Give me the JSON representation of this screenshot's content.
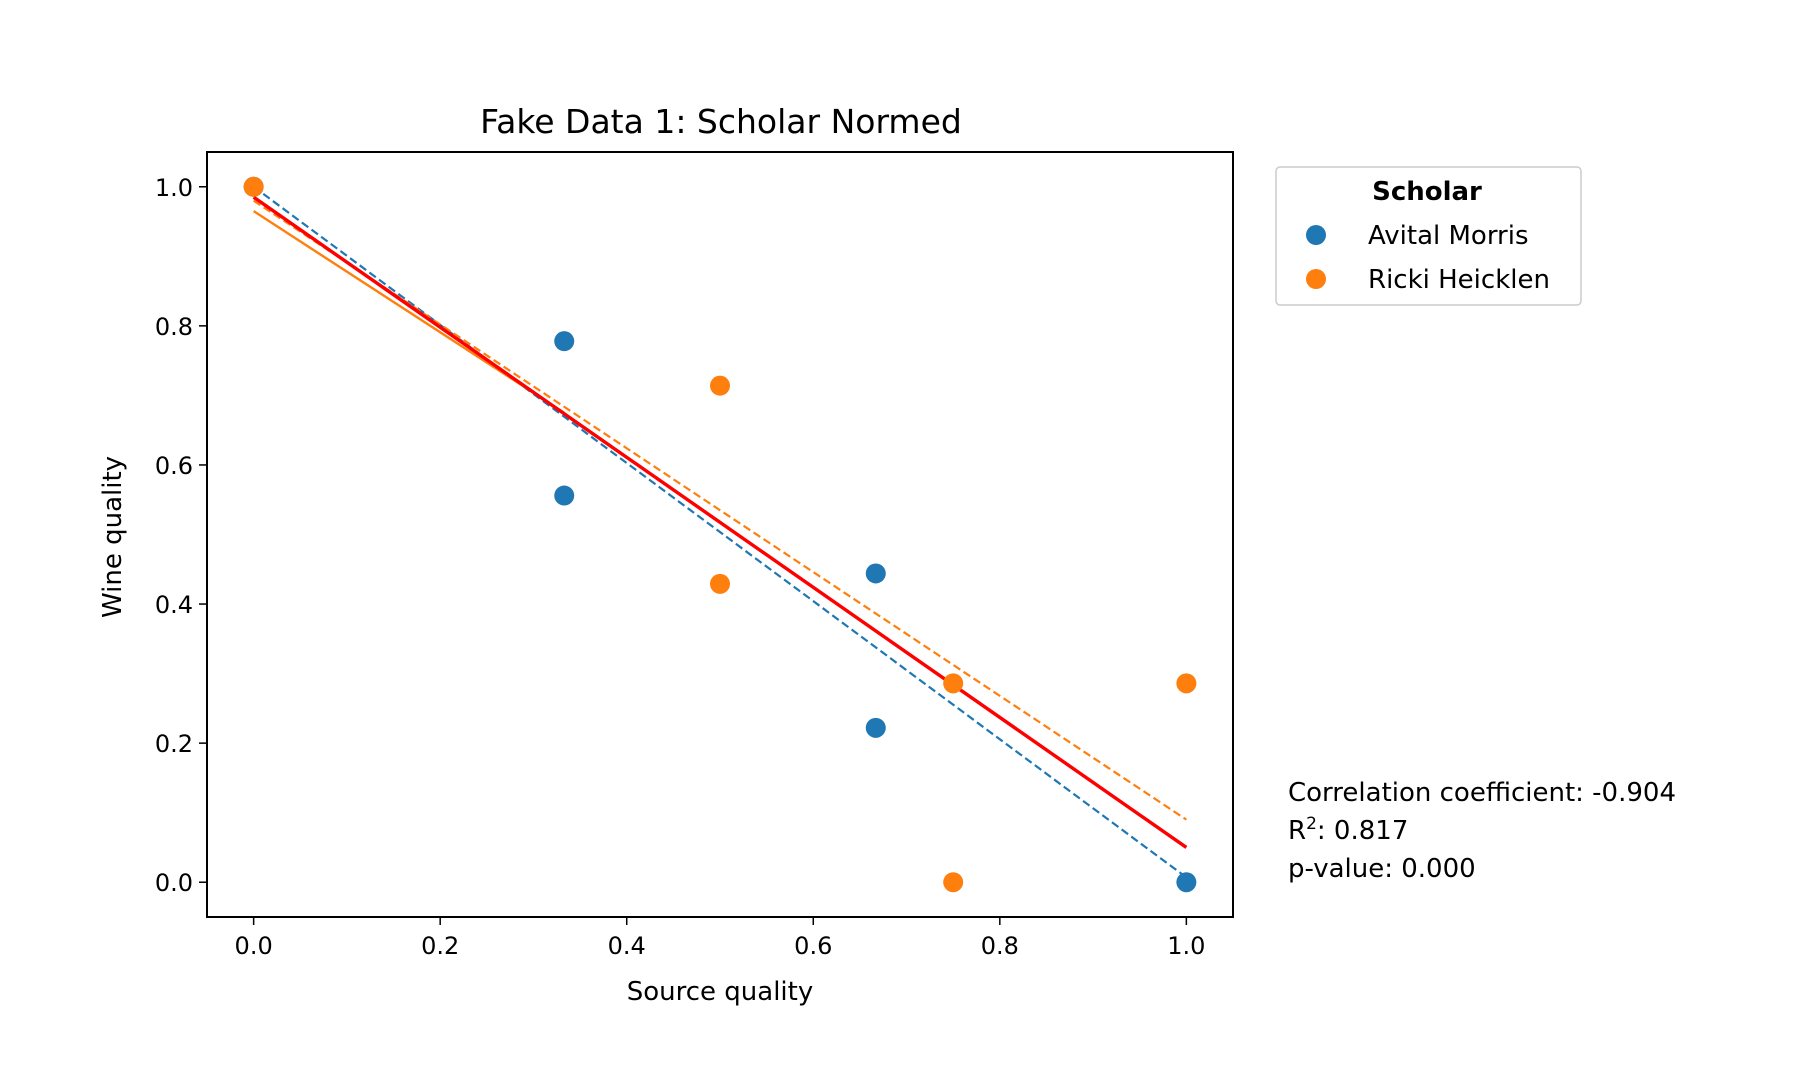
{
  "chart_data": {
    "type": "scatter",
    "title": "Fake Data 1: Scholar Normed",
    "xlabel": "Source quality",
    "ylabel": "Wine quality",
    "xlim": [
      -0.05,
      1.05
    ],
    "ylim": [
      -0.05,
      1.05
    ],
    "xticks": [
      "0.0",
      "0.2",
      "0.4",
      "0.6",
      "0.8",
      "1.0"
    ],
    "yticks": [
      "0.0",
      "0.2",
      "0.4",
      "0.6",
      "0.8",
      "1.0"
    ],
    "grid": false,
    "legend": {
      "title": "Scholar",
      "placement": "outside upper right"
    },
    "series": [
      {
        "name": "Avital Morris",
        "color": "#1f77b4",
        "points": [
          {
            "x": 0.0,
            "y": 1.0
          },
          {
            "x": 0.333,
            "y": 0.778
          },
          {
            "x": 0.333,
            "y": 0.556
          },
          {
            "x": 0.667,
            "y": 0.444
          },
          {
            "x": 0.667,
            "y": 0.222
          },
          {
            "x": 1.0,
            "y": 0.0
          }
        ],
        "fit": {
          "style": "dashed",
          "x": [
            0.0,
            1.0
          ],
          "y": [
            1.0,
            0.007
          ]
        }
      },
      {
        "name": "Ricki Heicklen",
        "color": "#ff7f0e",
        "points": [
          {
            "x": 0.0,
            "y": 1.0
          },
          {
            "x": 0.5,
            "y": 0.714
          },
          {
            "x": 0.5,
            "y": 0.429
          },
          {
            "x": 0.75,
            "y": 0.286
          },
          {
            "x": 0.75,
            "y": 0.0
          },
          {
            "x": 1.0,
            "y": 0.286
          }
        ],
        "fit": {
          "style": "dashed",
          "x": [
            0.0,
            1.0
          ],
          "y": [
            0.98,
            0.09
          ]
        }
      }
    ],
    "extra_lines": [
      {
        "color": "#ff7f0e",
        "style": "solid",
        "x": [
          0.0,
          0.333
        ],
        "y": [
          0.965,
          0.675
        ]
      },
      {
        "color": "#ff0000",
        "style": "solid",
        "x": [
          0.0,
          1.0
        ],
        "y": [
          0.985,
          0.05
        ]
      }
    ],
    "annotations": {
      "correlation": "Correlation coefficient: -0.904",
      "r2_label": "R",
      "r2_sup": "2",
      "r2_value": ": 0.817",
      "p_value": "p-value: 0.000"
    }
  }
}
